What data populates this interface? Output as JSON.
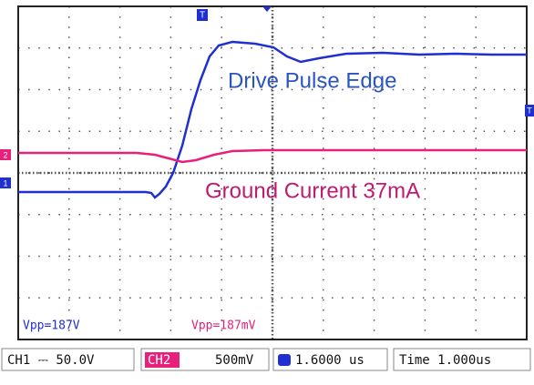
{
  "screen": {
    "labels": {
      "drive": "Drive Pulse Edge",
      "ground": "Ground Current  37mA"
    },
    "measurements": {
      "ch1": "Vpp=187V",
      "ch2": "Vpp=187mV"
    },
    "markers": {
      "trigger_top": "T",
      "trigger_right": "T",
      "ch2": "2",
      "ch1": "1"
    },
    "status": {
      "ch1": "CH1 ⎓ 50.0V",
      "ch2_name": "CH2",
      "ch2_scale": "500mV",
      "trigger_pos": "1.6000 us",
      "time": "Time 1.000us"
    }
  }
}
